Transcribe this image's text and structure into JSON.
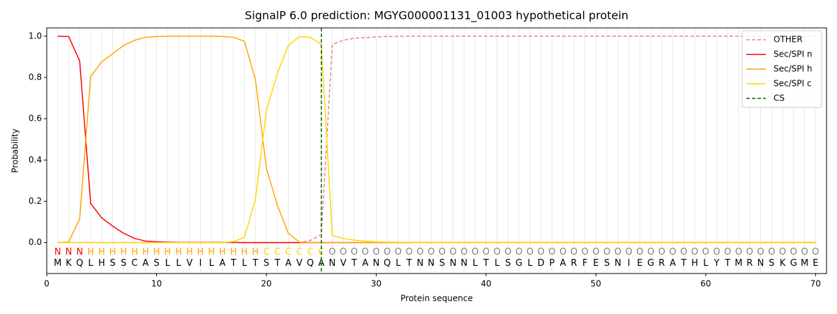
{
  "chart_data": {
    "type": "line",
    "title": "SignalP 6.0 prediction: MGYG000001131_01003 hypothetical protein",
    "x_label": "Protein sequence",
    "y_label": "Probability",
    "x": [
      1,
      2,
      3,
      4,
      5,
      6,
      7,
      8,
      9,
      10,
      11,
      12,
      13,
      14,
      15,
      16,
      17,
      18,
      19,
      20,
      21,
      22,
      23,
      24,
      25,
      26,
      27,
      28,
      29,
      30,
      31,
      32,
      33,
      34,
      35,
      36,
      37,
      38,
      39,
      40,
      41,
      42,
      43,
      44,
      45,
      46,
      47,
      48,
      49,
      50,
      51,
      52,
      53,
      54,
      55,
      56,
      57,
      58,
      59,
      60,
      61,
      62,
      63,
      64,
      65,
      66,
      67,
      68,
      69,
      70
    ],
    "sequence": [
      "M",
      "K",
      "Q",
      "L",
      "H",
      "S",
      "S",
      "C",
      "A",
      "S",
      "L",
      "L",
      "V",
      "I",
      "L",
      "A",
      "T",
      "L",
      "T",
      "S",
      "T",
      "A",
      "V",
      "Q",
      "A",
      "N",
      "V",
      "T",
      "A",
      "N",
      "Q",
      "L",
      "T",
      "N",
      "N",
      "S",
      "N",
      "N",
      "L",
      "T",
      "L",
      "S",
      "G",
      "L",
      "D",
      "P",
      "A",
      "R",
      "F",
      "E",
      "S",
      "N",
      "I",
      "E",
      "G",
      "R",
      "A",
      "T",
      "H",
      "L",
      "Y",
      "T",
      "M",
      "R",
      "N",
      "S",
      "K",
      "G",
      "M",
      "E"
    ],
    "regions": [
      "N",
      "N",
      "N",
      "H",
      "H",
      "H",
      "H",
      "H",
      "H",
      "H",
      "H",
      "H",
      "H",
      "H",
      "H",
      "H",
      "H",
      "H",
      "H",
      "C",
      "C",
      "C",
      "C",
      "C",
      "C",
      "O",
      "O",
      "O",
      "O",
      "O",
      "O",
      "O",
      "O",
      "O",
      "O",
      "O",
      "O",
      "O",
      "O",
      "O",
      "O",
      "O",
      "O",
      "O",
      "O",
      "O",
      "O",
      "O",
      "O",
      "O",
      "O",
      "O",
      "O",
      "O",
      "O",
      "O",
      "O",
      "O",
      "O",
      "O",
      "O",
      "O",
      "O",
      "O",
      "O",
      "O",
      "O",
      "O",
      "O",
      "O"
    ],
    "region_colors": {
      "N": "#ff0000",
      "H": "#ffa500",
      "C": "#ffd700",
      "O": "#808080"
    },
    "series": [
      {
        "name": "OTHER",
        "color": "#f08080",
        "dashed": true,
        "values": [
          0,
          0,
          0,
          0,
          0,
          0,
          0,
          0,
          0,
          0,
          0,
          0,
          0,
          0,
          0,
          0,
          0,
          0,
          0,
          0,
          0,
          0,
          0,
          0.01,
          0.04,
          0.96,
          0.98,
          0.99,
          0.993,
          0.996,
          0.998,
          0.999,
          1,
          1,
          1,
          1,
          1,
          1,
          1,
          1,
          1,
          1,
          1,
          1,
          1,
          1,
          1,
          1,
          1,
          1,
          1,
          1,
          1,
          1,
          1,
          1,
          1,
          1,
          1,
          1,
          1,
          1,
          1,
          1,
          1,
          1,
          1,
          1,
          1,
          1
        ]
      },
      {
        "name": "Sec/SPI n",
        "color": "#ff0000",
        "values": [
          1,
          0.998,
          0.88,
          0.19,
          0.12,
          0.08,
          0.045,
          0.02,
          0.007,
          0.004,
          0.002,
          0.001,
          0.001,
          0.001,
          0.001,
          0.001,
          0.001,
          0,
          0,
          0,
          0,
          0,
          0,
          0,
          0,
          0,
          0,
          0,
          0,
          0,
          0,
          0,
          0,
          0,
          0,
          0,
          0,
          0,
          0,
          0,
          0,
          0,
          0,
          0,
          0,
          0,
          0,
          0,
          0,
          0,
          0,
          0,
          0,
          0,
          0,
          0,
          0,
          0,
          0,
          0,
          0,
          0,
          0,
          0,
          0,
          0,
          0,
          0,
          0,
          0
        ]
      },
      {
        "name": "Sec/SPI h",
        "color": "#ffa500",
        "values": [
          0,
          0.003,
          0.115,
          0.805,
          0.875,
          0.915,
          0.955,
          0.98,
          0.995,
          0.998,
          1,
          1,
          1,
          1,
          1,
          0.998,
          0.995,
          0.975,
          0.79,
          0.36,
          0.18,
          0.045,
          0.002,
          0,
          0,
          0,
          0,
          0,
          0,
          0,
          0,
          0,
          0,
          0,
          0,
          0,
          0,
          0,
          0,
          0,
          0,
          0,
          0,
          0,
          0,
          0,
          0,
          0,
          0,
          0,
          0,
          0,
          0,
          0,
          0,
          0,
          0,
          0,
          0,
          0,
          0,
          0,
          0,
          0,
          0,
          0,
          0,
          0,
          0,
          0
        ]
      },
      {
        "name": "Sec/SPI c",
        "color": "#ffd700",
        "values": [
          0,
          0,
          0,
          0,
          0,
          0,
          0,
          0,
          0,
          0,
          0,
          0,
          0,
          0,
          0,
          0,
          0.005,
          0.025,
          0.21,
          0.64,
          0.82,
          0.955,
          0.998,
          0.995,
          0.96,
          0.035,
          0.02,
          0.012,
          0.007,
          0.004,
          0.002,
          0.001,
          0,
          0,
          0,
          0,
          0,
          0,
          0,
          0,
          0,
          0,
          0,
          0,
          0,
          0,
          0,
          0,
          0,
          0,
          0,
          0,
          0,
          0,
          0,
          0,
          0,
          0,
          0,
          0,
          0,
          0,
          0,
          0,
          0,
          0,
          0,
          0,
          0,
          0
        ]
      }
    ],
    "cs": {
      "name": "CS",
      "x": 25,
      "color": "#006400"
    },
    "xlim": [
      0,
      71
    ],
    "ylim": [
      -0.15,
      1.04
    ],
    "xticks": [
      0,
      10,
      20,
      30,
      40,
      50,
      60,
      70
    ],
    "yticks": [
      {
        "value": 0,
        "label": "0.0"
      },
      {
        "value": 0.2,
        "label": "0.2"
      },
      {
        "value": 0.4,
        "label": "0.4"
      },
      {
        "value": 0.6,
        "label": "0.6"
      },
      {
        "value": 0.8,
        "label": "0.8"
      },
      {
        "value": 1,
        "label": "1.0"
      }
    ],
    "grid": "x",
    "legend": "upper right"
  }
}
